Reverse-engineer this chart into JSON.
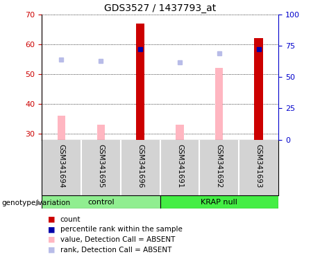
{
  "title": "GDS3527 / 1437793_at",
  "samples": [
    "GSM341694",
    "GSM341695",
    "GSM341696",
    "GSM341691",
    "GSM341692",
    "GSM341693"
  ],
  "ylim_left": [
    28,
    70
  ],
  "ylim_right": [
    0,
    100
  ],
  "yticks_left": [
    30,
    40,
    50,
    60,
    70
  ],
  "yticks_right": [
    0,
    25,
    50,
    75,
    100
  ],
  "left_axis_color": "#cc0000",
  "right_axis_color": "#0000cc",
  "count_values": [
    null,
    null,
    67,
    null,
    null,
    62
  ],
  "count_color": "#cc0000",
  "percentile_values": [
    null,
    null,
    58.5,
    null,
    null,
    58.5
  ],
  "percentile_color": "#0000aa",
  "absent_value_values": [
    36,
    33,
    30,
    33,
    52,
    30
  ],
  "absent_value_color": "#ffb6c1",
  "absent_rank_values": [
    55,
    54.5,
    null,
    54,
    57,
    null
  ],
  "absent_rank_color": "#b8bce8",
  "bar_bottom": 28,
  "group_labels": [
    "control",
    "KRAP null"
  ],
  "group_colors": [
    "#90ee90",
    "#44ee44"
  ],
  "sample_bg_color": "#d3d3d3",
  "legend_items": [
    {
      "label": "count",
      "color": "#cc0000"
    },
    {
      "label": "percentile rank within the sample",
      "color": "#0000aa"
    },
    {
      "label": "value, Detection Call = ABSENT",
      "color": "#ffb6c1"
    },
    {
      "label": "rank, Detection Call = ABSENT",
      "color": "#b8bce8"
    }
  ],
  "genotype_label": "genotype/variation",
  "count_bar_width": 0.22,
  "absent_bar_width": 0.2
}
